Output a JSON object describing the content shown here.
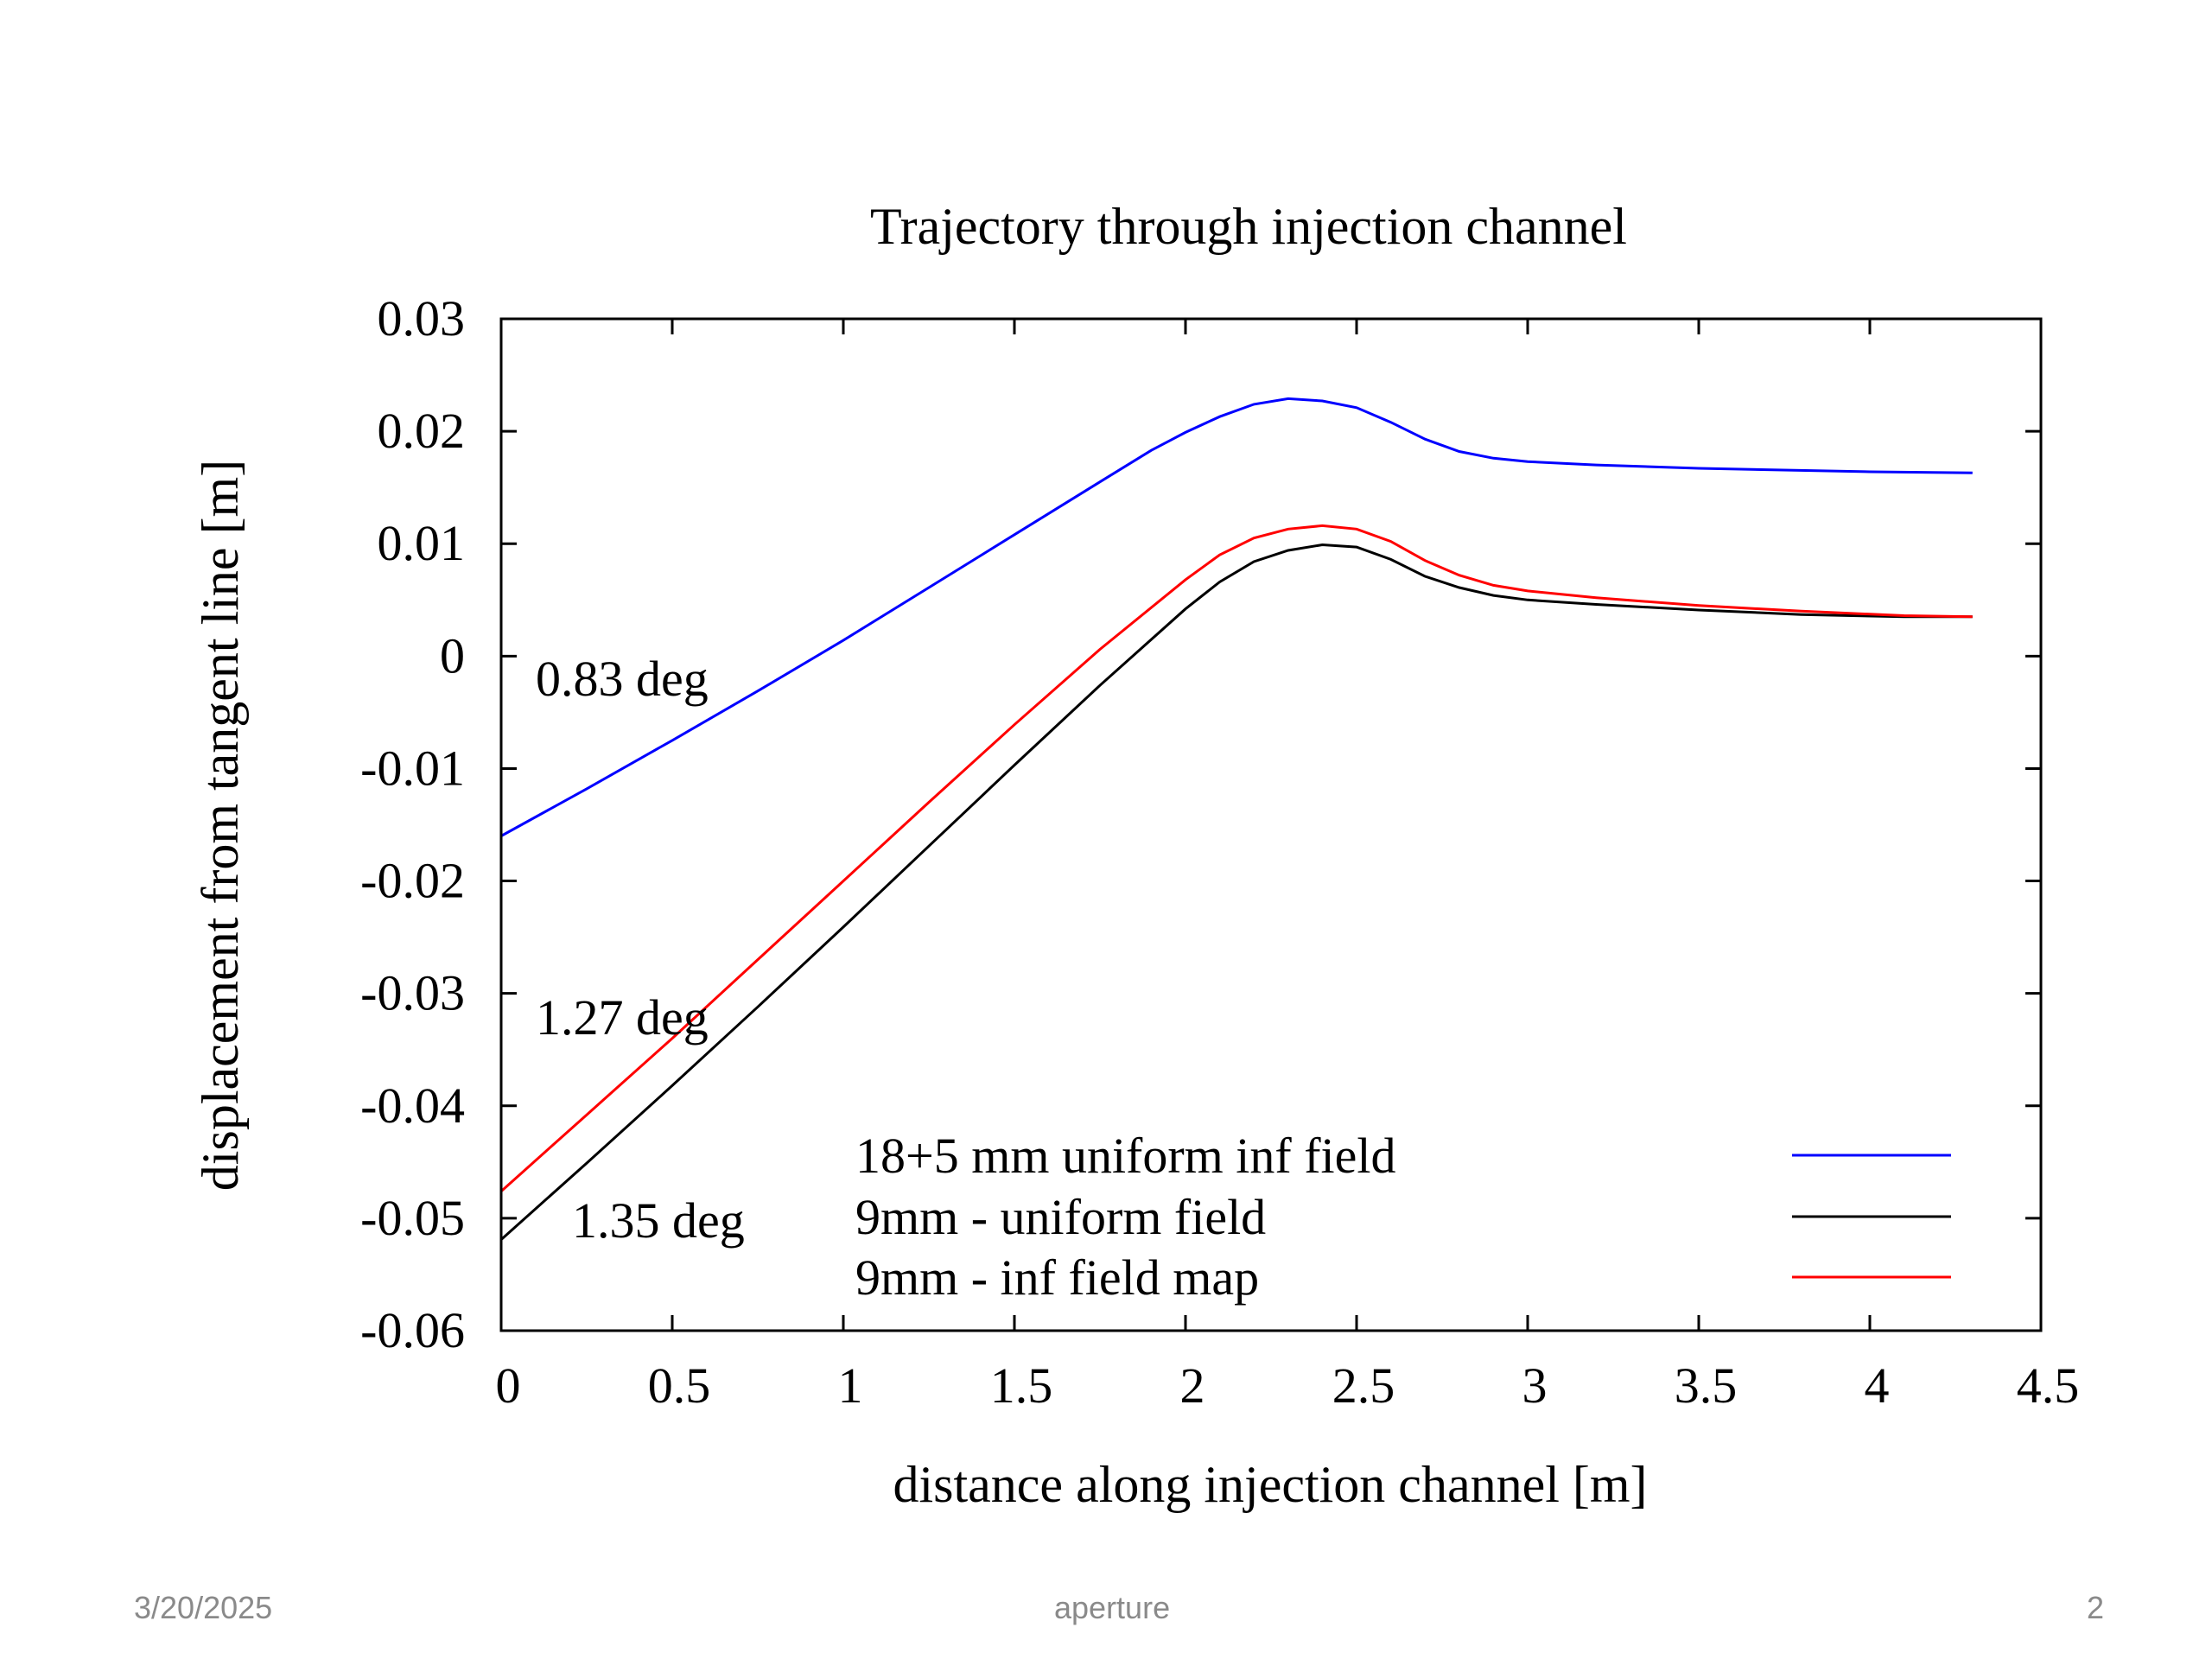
{
  "slide": {
    "footer_date": "3/20/2025",
    "footer_center": "aperture",
    "page_number": "2"
  },
  "chart_data": {
    "type": "line",
    "title": "Trajectory through injection channel",
    "xlabel": "distance along injection channel [m]",
    "ylabel": "displacement from tangent line [m]",
    "xlim": [
      0,
      4.5
    ],
    "ylim": [
      -0.06,
      0.03
    ],
    "xticks": [
      0,
      0.5,
      1,
      1.5,
      2,
      2.5,
      3,
      3.5,
      4,
      4.5
    ],
    "xtick_labels": [
      "0",
      "0.5",
      "1",
      "1.5",
      "2",
      "2.5",
      "3",
      "3.5",
      "4",
      "4.5"
    ],
    "yticks": [
      0.03,
      0.02,
      0.01,
      0,
      -0.01,
      -0.02,
      -0.03,
      -0.04,
      -0.05,
      -0.06
    ],
    "ytick_labels": [
      "0.03",
      "0.02",
      "0.01",
      "0",
      "-0.01",
      "-0.02",
      "-0.03",
      "-0.04",
      "-0.05",
      "-0.06"
    ],
    "grid": false,
    "legend_position": "bottom-right",
    "series": [
      {
        "name": "18+5 mm uniform inf field",
        "color": "#0000ff",
        "x": [
          0,
          0.25,
          0.5,
          0.75,
          1.0,
          1.25,
          1.5,
          1.75,
          1.9,
          2.0,
          2.1,
          2.2,
          2.3,
          2.4,
          2.5,
          2.6,
          2.7,
          2.8,
          2.9,
          3.0,
          3.2,
          3.5,
          4.0,
          4.3
        ],
        "y": [
          -0.016,
          -0.0118,
          -0.0075,
          -0.0031,
          0.0014,
          0.0061,
          0.0108,
          0.0155,
          0.0183,
          0.0199,
          0.0213,
          0.0224,
          0.0229,
          0.0227,
          0.0221,
          0.0208,
          0.0193,
          0.0182,
          0.0176,
          0.0173,
          0.017,
          0.0167,
          0.0164,
          0.0163
        ]
      },
      {
        "name": "9mm - uniform field",
        "color": "#000000",
        "x": [
          0,
          0.25,
          0.5,
          0.75,
          1.0,
          1.25,
          1.5,
          1.75,
          2.0,
          2.1,
          2.2,
          2.3,
          2.4,
          2.5,
          2.6,
          2.7,
          2.8,
          2.9,
          3.0,
          3.2,
          3.5,
          3.8,
          4.1,
          4.3
        ],
        "y": [
          -0.0519,
          -0.0451,
          -0.0382,
          -0.0312,
          -0.0241,
          -0.0169,
          -0.0097,
          -0.0026,
          0.0042,
          0.0066,
          0.0084,
          0.0094,
          0.0099,
          0.0097,
          0.0086,
          0.0071,
          0.0061,
          0.0054,
          0.005,
          0.0046,
          0.0041,
          0.0037,
          0.0035,
          0.0035
        ]
      },
      {
        "name": "9mm - inf field map",
        "color": "#ff0000",
        "x": [
          0,
          0.25,
          0.5,
          0.75,
          1.0,
          1.25,
          1.5,
          1.75,
          2.0,
          2.1,
          2.2,
          2.3,
          2.4,
          2.5,
          2.6,
          2.7,
          2.8,
          2.9,
          3.0,
          3.2,
          3.5,
          3.8,
          4.1,
          4.3
        ],
        "y": [
          -0.0476,
          -0.0408,
          -0.034,
          -0.027,
          -0.02,
          -0.013,
          -0.0061,
          0.0006,
          0.0068,
          0.009,
          0.0105,
          0.0113,
          0.0116,
          0.0113,
          0.0102,
          0.0085,
          0.0072,
          0.0063,
          0.0058,
          0.0052,
          0.0045,
          0.004,
          0.0036,
          0.0035
        ]
      }
    ],
    "annotations": [
      "0.83 deg",
      "1.27 deg",
      "1.35 deg"
    ]
  }
}
